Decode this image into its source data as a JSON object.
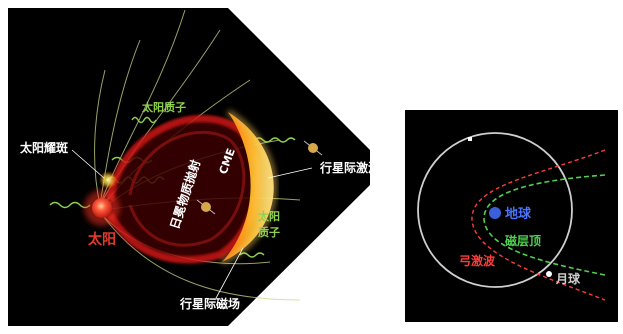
{
  "left_panel": {
    "labels": {
      "solar_flare": "太阳耀斑",
      "solar_protons_top": "太阳质子",
      "sun": "太阳",
      "cme_full": "日冕物质抛射",
      "cme_abbr": "CME",
      "interplanetary_shock": "行星际激波",
      "solar_protons_right_line1": "太阳",
      "solar_protons_right_line2": "质子",
      "interplanetary_magnetic_field": "行星际磁场"
    },
    "colors": {
      "sun": "#e53a2a",
      "protons": "#8fd14f",
      "text": "#ffffff",
      "cme_front": "#ffb020"
    }
  },
  "right_panel": {
    "labels": {
      "earth": "地球",
      "magnetopause": "磁层顶",
      "bow_shock": "弓激波",
      "moon": "月球"
    },
    "colors": {
      "earth": "#3a5fd9",
      "earth_label": "#4a74ff",
      "magnetopause": "#4fd04f",
      "bow_shock": "#ff3b3b",
      "moon_orbit": "#cfcfcf"
    }
  }
}
